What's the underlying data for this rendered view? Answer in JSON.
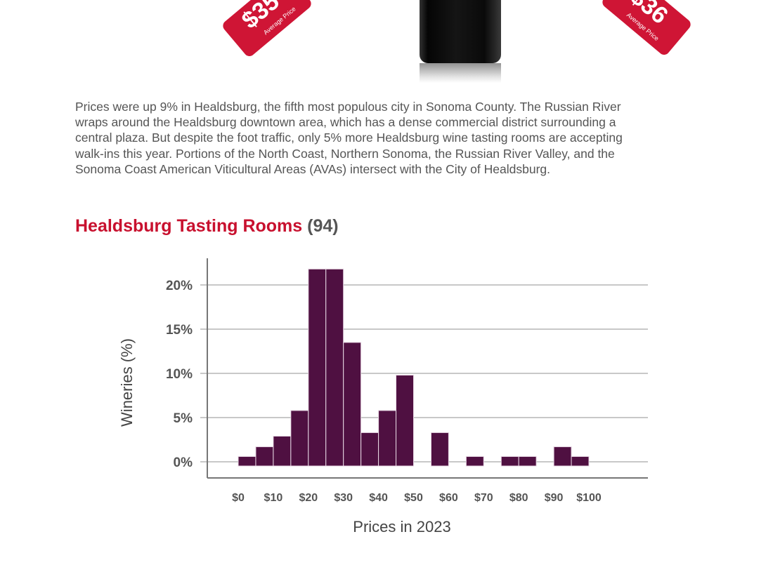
{
  "price_tags": [
    {
      "price": "$35",
      "label": "Average Price"
    },
    {
      "price": "$36",
      "label": "Average Price"
    }
  ],
  "paragraph": "Prices were up 9% in Healdsburg, the fifth most populous city in Sonoma County. The Russian River wraps around the Healdsburg downtown area, which has a dense commercial district surrounding a central plaza. But despite the foot traffic, only 5% more Healdsburg wine tasting rooms are accepting walk-ins this year. Portions of the North Coast, Northern Sonoma, the Russian River Valley, and the Sonoma Coast American Viticultural Areas (AVAs) intersect with the City of Healdsburg.",
  "section": {
    "title": "Healdsburg Tasting Rooms",
    "count": "(94)"
  },
  "colors": {
    "accent": "#c8102e",
    "bar": "#4f1041",
    "tag": "#cf1535"
  },
  "chart_data": {
    "type": "bar",
    "xlabel": "Prices in 2023",
    "ylabel": "Wineries (%)",
    "bin_width": 5,
    "bin_starts": [
      0,
      5,
      10,
      15,
      20,
      25,
      30,
      35,
      40,
      45,
      55,
      65,
      75,
      80,
      90,
      95
    ],
    "values": [
      0.6,
      1.7,
      2.9,
      5.8,
      21.8,
      21.8,
      13.5,
      3.3,
      5.8,
      9.8,
      3.3,
      0.6,
      0.6,
      0.6,
      1.7,
      0.6
    ],
    "xlim": [
      0,
      115
    ],
    "ylim": [
      0,
      22
    ],
    "x_ticks": [
      0,
      10,
      20,
      30,
      40,
      50,
      60,
      70,
      80,
      90,
      100
    ],
    "x_tick_labels": [
      "$0",
      "$10",
      "$20",
      "$30",
      "$40",
      "$50",
      "$60",
      "$70",
      "$80",
      "$90",
      "$100"
    ],
    "y_ticks": [
      0,
      5,
      10,
      15,
      20
    ],
    "y_tick_labels": [
      "0%",
      "5%",
      "10%",
      "15%",
      "20%"
    ],
    "grid": "horizontal"
  }
}
